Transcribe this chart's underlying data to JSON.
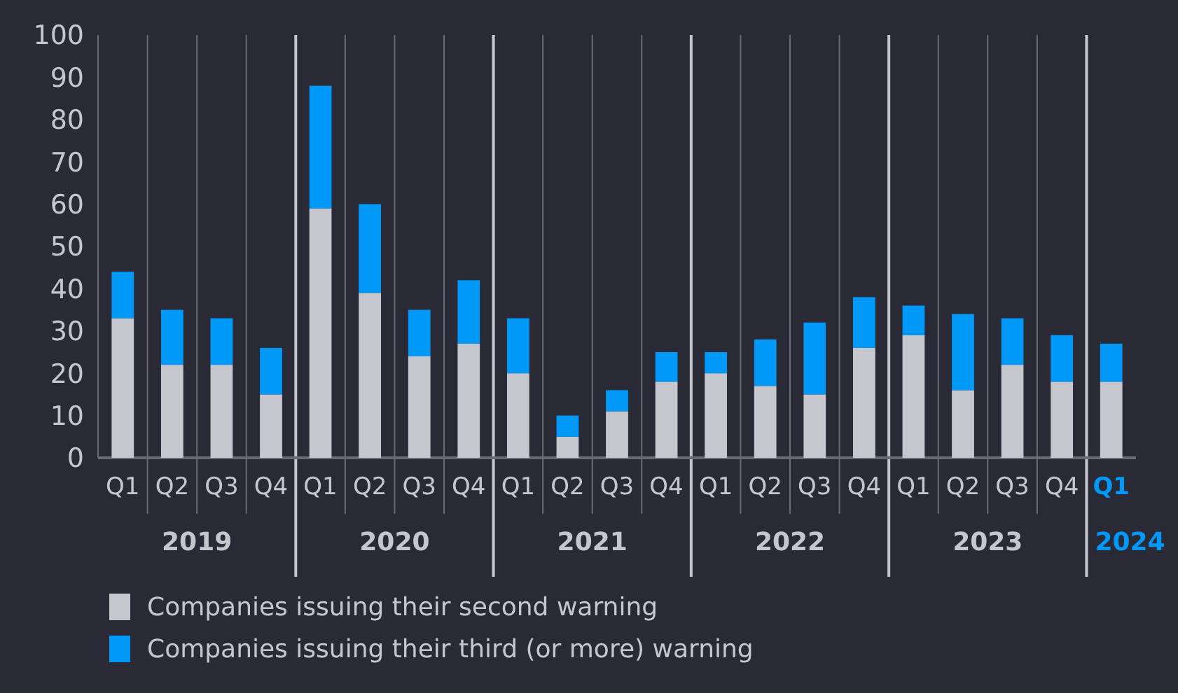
{
  "chart_data": {
    "type": "bar",
    "stacked": true,
    "categories": [
      "Q1",
      "Q2",
      "Q3",
      "Q4",
      "Q1",
      "Q2",
      "Q3",
      "Q4",
      "Q1",
      "Q2",
      "Q3",
      "Q4",
      "Q1",
      "Q2",
      "Q3",
      "Q4",
      "Q1",
      "Q2",
      "Q3",
      "Q4",
      "Q1"
    ],
    "series": [
      {
        "name": "Companies issuing their second warning",
        "color": "#c6c6cf",
        "values": [
          33,
          22,
          22,
          15,
          59,
          39,
          24,
          27,
          20,
          5,
          11,
          18,
          20,
          17,
          15,
          26,
          29,
          16,
          22,
          18,
          18
        ]
      },
      {
        "name": "Companies issuing their third (or more) warning",
        "color": "#0099f8",
        "values": [
          11,
          13,
          11,
          11,
          29,
          21,
          11,
          15,
          13,
          5,
          5,
          7,
          5,
          11,
          17,
          12,
          7,
          18,
          11,
          11,
          9
        ]
      }
    ],
    "ylim": [
      0,
      100
    ],
    "yticks": [
      0,
      10,
      20,
      30,
      40,
      50,
      60,
      70,
      80,
      90,
      100
    ],
    "grid": false,
    "legend": "bottom left",
    "annotations": [
      "2019",
      "2020",
      "2021",
      "2022",
      "2023",
      "2024"
    ]
  }
}
